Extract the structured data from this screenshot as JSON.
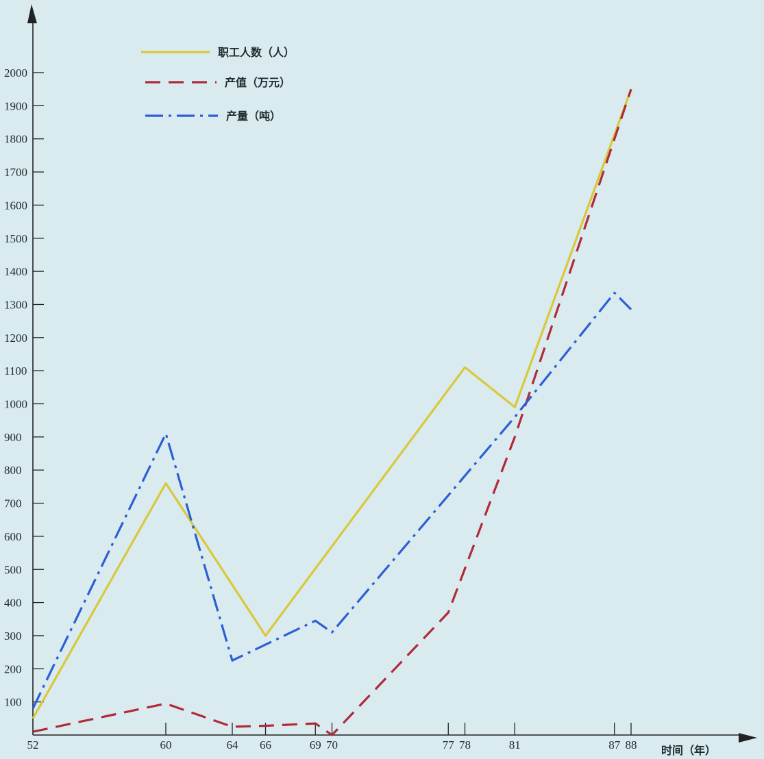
{
  "chart_data": {
    "type": "line",
    "title": "",
    "xlabel": "时间（年）",
    "ylabel": "",
    "x": [
      52,
      60,
      64,
      66,
      69,
      70,
      77,
      78,
      81,
      87,
      88
    ],
    "x_tick_labels": [
      "52",
      "60",
      "64",
      "66",
      "69",
      "70",
      "77",
      "78",
      "81",
      "87",
      "88"
    ],
    "y_ticks": [
      100,
      200,
      300,
      400,
      500,
      600,
      700,
      800,
      900,
      1000,
      1100,
      1200,
      1300,
      1400,
      1500,
      1600,
      1700,
      1800,
      1900,
      2000
    ],
    "y_tick_labels": [
      "100",
      "200",
      "300",
      "400",
      "500",
      "600",
      "700",
      "800",
      "900",
      "1000",
      "1100",
      "1200",
      "1300",
      "1400",
      "1500",
      "1600",
      "1700",
      "1800",
      "1900",
      "2000"
    ],
    "xlim": [
      52,
      94
    ],
    "ylim": [
      0,
      2200
    ],
    "grid": false,
    "legend_position": "top-left",
    "series": [
      {
        "name": "职工人数（人）",
        "color": "#d9c83a",
        "style": "solid",
        "points": [
          [
            52,
            50
          ],
          [
            60,
            760
          ],
          [
            66,
            300
          ],
          [
            78,
            1110
          ],
          [
            81,
            990
          ],
          [
            88,
            1950
          ]
        ]
      },
      {
        "name": "产值（万元）",
        "color": "#b02a3a",
        "style": "dashed",
        "points": [
          [
            52,
            10
          ],
          [
            60,
            95
          ],
          [
            64,
            25
          ],
          [
            66,
            28
          ],
          [
            69,
            35
          ],
          [
            70,
            0
          ],
          [
            77,
            370
          ],
          [
            81,
            900
          ],
          [
            88,
            1950
          ]
        ]
      },
      {
        "name": "产量（吨）",
        "color": "#2c5ed6",
        "style": "dashdot",
        "points": [
          [
            52,
            80
          ],
          [
            60,
            910
          ],
          [
            64,
            225
          ],
          [
            69,
            345
          ],
          [
            70,
            310
          ],
          [
            81,
            960
          ],
          [
            87,
            1335
          ],
          [
            88,
            1285
          ]
        ]
      }
    ]
  }
}
